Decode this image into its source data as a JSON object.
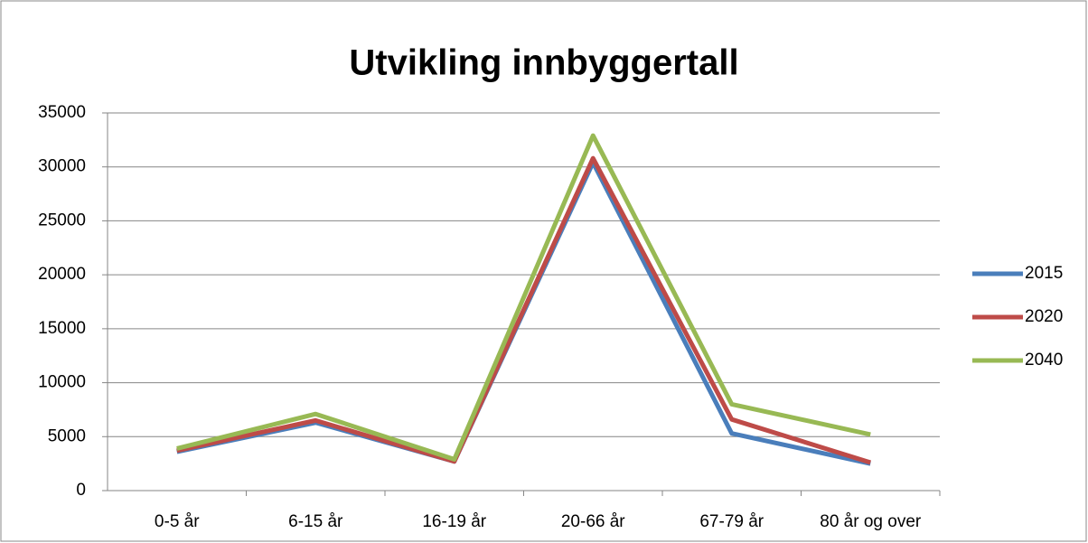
{
  "chart_data": {
    "type": "line",
    "title": "Utvikling innbyggertall",
    "categories": [
      "0-5 år",
      "6-15 år",
      "16-19 år",
      "20-66 år",
      "67-79 år",
      "80 år og over"
    ],
    "series": [
      {
        "name": "2015",
        "color": "#4a7ebb",
        "values": [
          3600,
          6300,
          2700,
          30400,
          5300,
          2500
        ]
      },
      {
        "name": "2020",
        "color": "#be4b48",
        "values": [
          3700,
          6500,
          2700,
          30800,
          6600,
          2600
        ]
      },
      {
        "name": "2040",
        "color": "#98b954",
        "values": [
          3900,
          7100,
          2900,
          32900,
          8000,
          5200
        ]
      }
    ],
    "ylim": [
      0,
      35000
    ],
    "yticks": [
      0,
      5000,
      10000,
      15000,
      20000,
      25000,
      30000,
      35000
    ],
    "grid": true,
    "legend": "right"
  }
}
